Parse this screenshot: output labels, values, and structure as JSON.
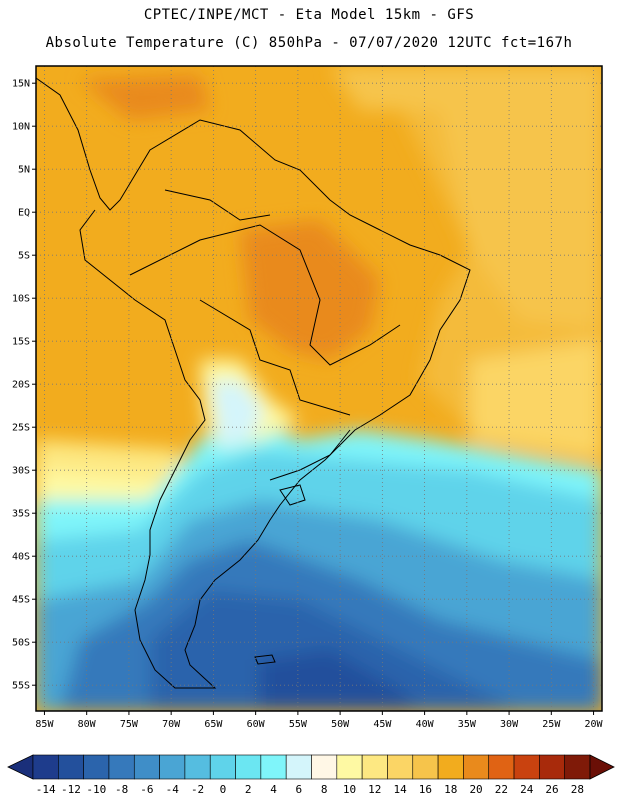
{
  "header": {
    "title_line1": "CPTEC/INPE/MCT -  Eta Model 15km - GFS",
    "title_line2": "Absolute Temperature (C) 850hPa - 07/07/2020 12UTC fct=167h"
  },
  "axes": {
    "lat_labels": [
      "15N",
      "10N",
      "5N",
      "EQ",
      "5S",
      "10S",
      "15S",
      "20S",
      "25S",
      "30S",
      "35S",
      "40S",
      "45S",
      "50S",
      "55S"
    ],
    "lat_values": [
      15,
      10,
      5,
      0,
      -5,
      -10,
      -15,
      -20,
      -25,
      -30,
      -35,
      -40,
      -45,
      -50,
      -55
    ],
    "lon_labels": [
      "85W",
      "80W",
      "75W",
      "70W",
      "65W",
      "60W",
      "55W",
      "50W",
      "45W",
      "40W",
      "35W",
      "30W",
      "25W",
      "20W"
    ],
    "lon_values": [
      -85,
      -80,
      -75,
      -70,
      -65,
      -60,
      -55,
      -50,
      -45,
      -40,
      -35,
      -30,
      -25,
      -20
    ],
    "lat_range": [
      -58,
      17
    ],
    "lon_range": [
      -86,
      -19
    ],
    "grid": "dotted"
  },
  "colorbar": {
    "labels": [
      "-14",
      "-12",
      "-10",
      "-8",
      "-6",
      "-4",
      "-2",
      "0",
      "2",
      "4",
      "6",
      "8",
      "10",
      "12",
      "14",
      "16",
      "18",
      "20",
      "22",
      "24",
      "26",
      "28"
    ],
    "colors": [
      "#1e3c8c",
      "#23509c",
      "#2b64ac",
      "#3679bb",
      "#3f8ec8",
      "#4aa5d4",
      "#55bde0",
      "#5fd3ea",
      "#6be6f2",
      "#7ff5fa",
      "#d4f5fb",
      "#fff7e6",
      "#fef9a3",
      "#fde882",
      "#fbd565",
      "#f6c44b",
      "#f2ac1e",
      "#e98a1c",
      "#e06314",
      "#c9420f",
      "#a82a0b",
      "#7f1a08"
    ],
    "under_color": "#1a2f7a",
    "over_color": "#6a0f06"
  }
}
